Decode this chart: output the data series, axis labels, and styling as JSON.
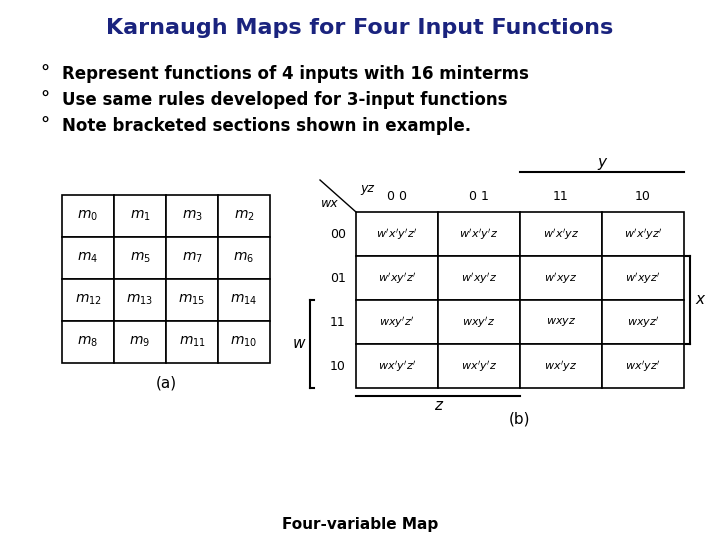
{
  "title": "Karnaugh Maps for Four Input Functions",
  "title_color": "#1a237e",
  "title_fontsize": 16,
  "bullets": [
    "Represent functions of 4 inputs with 16 minterms",
    "Use same rules developed for 3-input functions",
    "Note bracketed sections shown in example."
  ],
  "bullet_fontsize": 12,
  "table_a_label": "(a)",
  "table_b_label": "(b)",
  "footer": "Four-variable Map",
  "table_a": {
    "cells": [
      [
        "$m_0$",
        "$m_1$",
        "$m_3$",
        "$m_2$"
      ],
      [
        "$m_4$",
        "$m_5$",
        "$m_7$",
        "$m_6$"
      ],
      [
        "$m_{12}$",
        "$m_{13}$",
        "$m_{15}$",
        "$m_{14}$"
      ],
      [
        "$m_8$",
        "$m_9$",
        "$m_{11}$",
        "$m_{10}$"
      ]
    ]
  },
  "table_b": {
    "col_headers": [
      "0 0",
      "0 1",
      "11",
      "10"
    ],
    "row_headers": [
      "00",
      "01",
      "11",
      "10"
    ],
    "wx_label": "wx",
    "yz_label": "yz",
    "y_label": "y",
    "z_label": "z",
    "x_label": "x",
    "w_label": "w",
    "cells": [
      [
        "$w'x'y'z'$",
        "$w'x'y'z$",
        "$w'x'yz$",
        "$w'x'yz'$"
      ],
      [
        "$w'xy'z'$",
        "$w'xy'z$",
        "$w'xyz$",
        "$w'xyz'$"
      ],
      [
        "$wxy'z'$",
        "$wxy'z$",
        "$wxyz$",
        "$wxyz'$"
      ],
      [
        "$wx'y'z'$",
        "$wx'y'z$",
        "$wx'yz$",
        "$wx'yz'$"
      ]
    ]
  },
  "bg_color": "#ffffff",
  "text_color": "#000000"
}
